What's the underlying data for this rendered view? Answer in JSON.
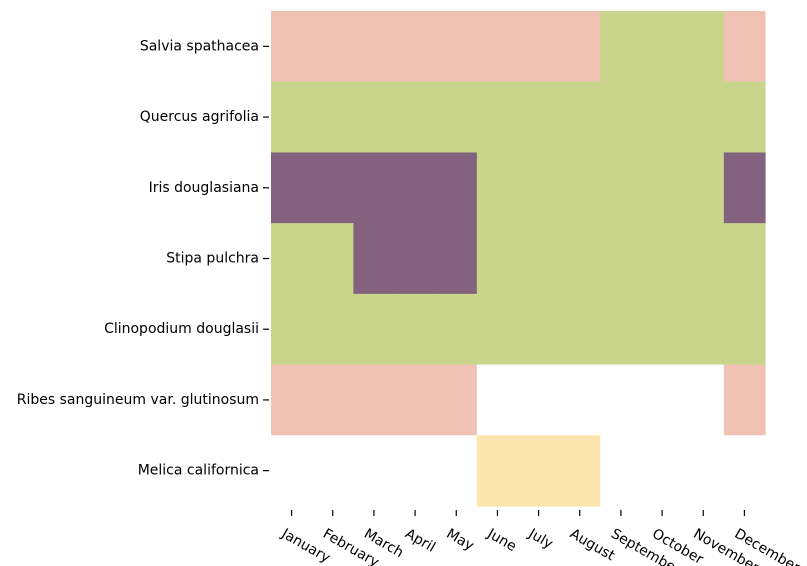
{
  "chart_data": {
    "type": "heatmap",
    "title": "",
    "xlabel": "",
    "ylabel": "",
    "grid": false,
    "legend": "none",
    "x_categories": [
      "January",
      "February",
      "March",
      "April",
      "May",
      "June",
      "July",
      "August",
      "September",
      "October",
      "November",
      "December"
    ],
    "y_categories": [
      "Salvia spathacea",
      "Quercus agrifolia",
      "Iris douglasiana",
      "Stipa pulchra",
      "Clinopodium douglasii",
      "Ribes sanguineum var. glutinosum",
      "Melica californica"
    ],
    "palette": {
      "pink": "#efc2b3",
      "green": "#c9d58b",
      "purple": "#82627e",
      "yellow": "#fde4ae",
      "none": "#ffffff"
    },
    "values": [
      [
        "pink",
        "pink",
        "pink",
        "pink",
        "pink",
        "pink",
        "pink",
        "pink",
        "green",
        "green",
        "green",
        "pink"
      ],
      [
        "green",
        "green",
        "green",
        "green",
        "green",
        "green",
        "green",
        "green",
        "green",
        "green",
        "green",
        "green"
      ],
      [
        "purple",
        "purple",
        "purple",
        "purple",
        "purple",
        "green",
        "green",
        "green",
        "green",
        "green",
        "green",
        "purple"
      ],
      [
        "green",
        "green",
        "purple",
        "purple",
        "purple",
        "green",
        "green",
        "green",
        "green",
        "green",
        "green",
        "green"
      ],
      [
        "green",
        "green",
        "green",
        "green",
        "green",
        "green",
        "green",
        "green",
        "green",
        "green",
        "green",
        "green"
      ],
      [
        "pink",
        "pink",
        "pink",
        "pink",
        "pink",
        "none",
        "none",
        "none",
        "none",
        "none",
        "none",
        "pink"
      ],
      [
        "none",
        "none",
        "none",
        "none",
        "none",
        "yellow",
        "yellow",
        "yellow",
        "none",
        "none",
        "none",
        "none"
      ]
    ]
  }
}
